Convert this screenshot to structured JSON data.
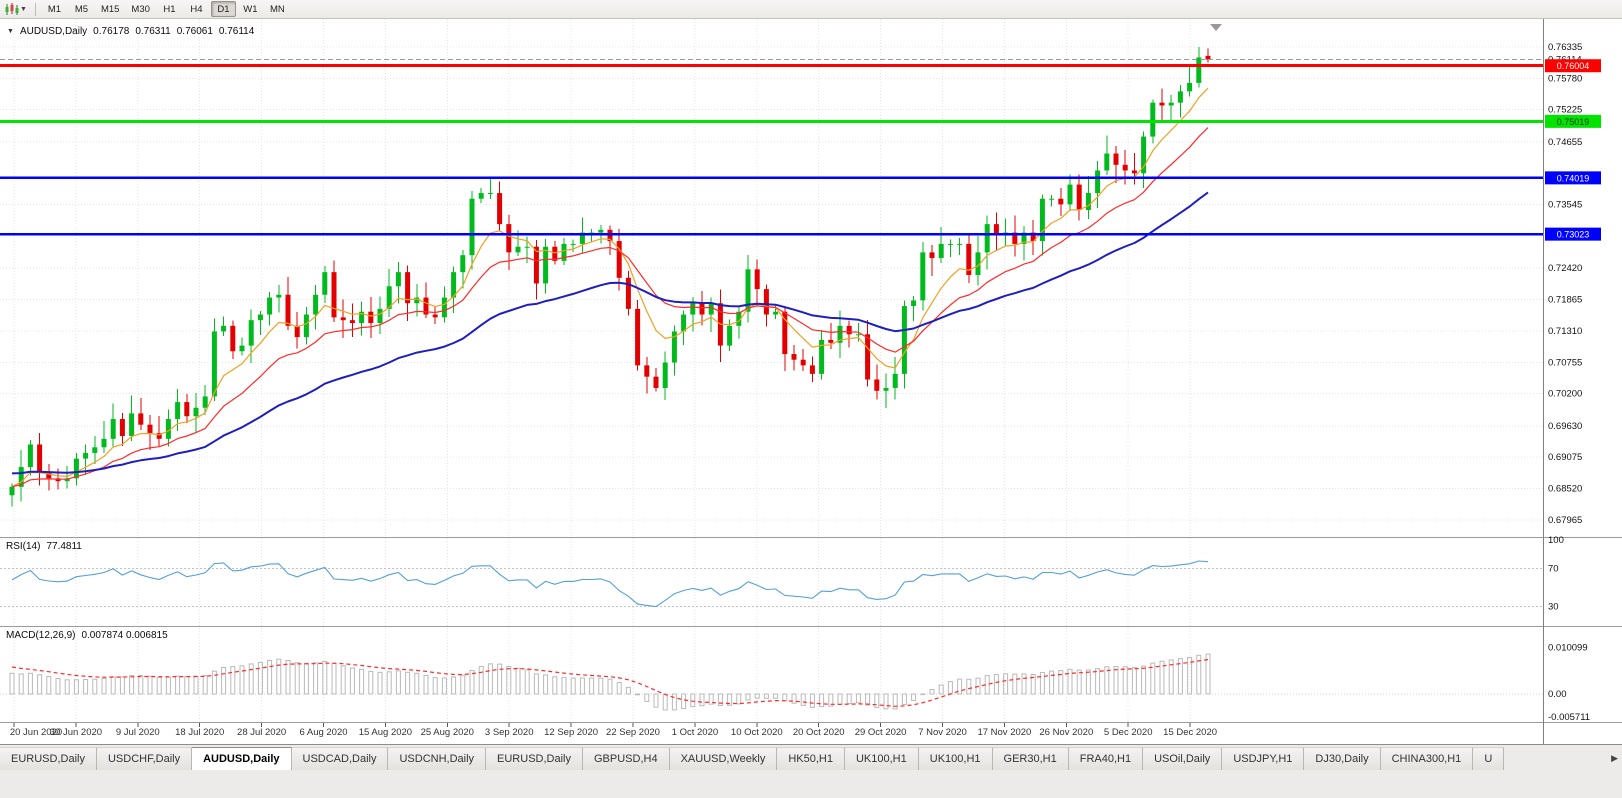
{
  "toolbar": {
    "timeframes": [
      "M1",
      "M5",
      "M15",
      "M30",
      "H1",
      "H4",
      "D1",
      "W1",
      "MN"
    ],
    "active_timeframe": "D1",
    "chart_type_icon": "candlestick-chart-icon",
    "dropdown_caret": "▼"
  },
  "header": {
    "collapse_icon": "▼",
    "symbol": "AUDUSD,Daily",
    "open": "0.76178",
    "high": "0.76311",
    "low": "0.76061",
    "close": "0.76114"
  },
  "rsi": {
    "title": "RSI(14)",
    "value": "77.4811",
    "axis_labels": [
      "100",
      "70",
      "30"
    ],
    "levels": [
      70,
      30
    ],
    "line_color": "#54a0d8"
  },
  "macd": {
    "title": "MACD(12,26,9)",
    "values": "0.007874 0.006815",
    "axis_labels": [
      "0.010099",
      "0.00",
      "-0.005711"
    ],
    "bar_color": "#b9b9b9",
    "signal_color": "#ff2a2a"
  },
  "tab_bar": {
    "active_index": 2,
    "scroll_right_icon": "▶",
    "tabs": [
      "EURUSD,Daily",
      "USDCHF,Daily",
      "AUDUSD,Daily",
      "USDCAD,Daily",
      "USDCNH,Daily",
      "EURUSD,Daily",
      "GBPUSD,H4",
      "XAUUSD,Weekly",
      "HK50,H1",
      "UK100,H1",
      "UK100,H1",
      "GER30,H1",
      "FRA40,H1",
      "USOil,Daily",
      "USDJPY,H1",
      "DJ30,Daily",
      "CHINA300,H1",
      "U"
    ]
  },
  "chart_data": {
    "type": "candlestick",
    "title": "AUDUSD,Daily",
    "x_labels": [
      "20 Jun 2020",
      "30 Jun 2020",
      "9 Jul 2020",
      "18 Jul 2020",
      "28 Jul 2020",
      "6 Aug 2020",
      "15 Aug 2020",
      "25 Aug 2020",
      "3 Sep 2020",
      "12 Sep 2020",
      "22 Sep 2020",
      "1 Oct 2020",
      "10 Oct 2020",
      "20 Oct 2020",
      "29 Oct 2020",
      "7 Nov 2020",
      "17 Nov 2020",
      "26 Nov 2020",
      "5 Dec 2020",
      "15 Dec 2020"
    ],
    "y_axis_ticks": [
      "0.76335",
      "0.75780",
      "0.75225",
      "0.74655",
      "0.73545",
      "0.72420",
      "0.71865",
      "0.71310",
      "0.70755",
      "0.70200",
      "0.69630",
      "0.69075",
      "0.68520",
      "0.67965"
    ],
    "current_price": {
      "value": 0.76114,
      "label": "0.76114"
    },
    "levels": [
      {
        "value": 0.76004,
        "label": "0.76004",
        "color": "#ff0000",
        "width": 3,
        "text": "#ffffff"
      },
      {
        "value": 0.75019,
        "label": "0.75019",
        "color": "#00e400",
        "width": 3,
        "text": "#063306"
      },
      {
        "value": 0.74019,
        "label": "0.74019",
        "color": "#0000ff",
        "width": 2.5,
        "text": "#ffffff"
      },
      {
        "value": 0.73023,
        "label": "0.73023",
        "color": "#0000ff",
        "width": 2.5,
        "text": "#ffffff"
      }
    ],
    "first_open": 0.684,
    "closes": [
      0.6855,
      0.689,
      0.693,
      0.688,
      0.687,
      0.6865,
      0.687,
      0.6905,
      0.6915,
      0.6925,
      0.694,
      0.6975,
      0.6945,
      0.6985,
      0.6965,
      0.695,
      0.694,
      0.6975,
      0.7005,
      0.698,
      0.6995,
      0.7015,
      0.713,
      0.714,
      0.7095,
      0.7105,
      0.715,
      0.716,
      0.719,
      0.7195,
      0.714,
      0.712,
      0.716,
      0.7195,
      0.7235,
      0.7155,
      0.715,
      0.7145,
      0.7165,
      0.7145,
      0.717,
      0.721,
      0.7235,
      0.718,
      0.719,
      0.716,
      0.7155,
      0.719,
      0.7235,
      0.7265,
      0.7365,
      0.7375,
      0.7375,
      0.732,
      0.727,
      0.728,
      0.728,
      0.7215,
      0.728,
      0.7255,
      0.7285,
      0.7285,
      0.7305,
      0.7305,
      0.731,
      0.729,
      0.7225,
      0.717,
      0.707,
      0.705,
      0.703,
      0.7075,
      0.713,
      0.716,
      0.718,
      0.716,
      0.718,
      0.7105,
      0.714,
      0.7165,
      0.724,
      0.7205,
      0.716,
      0.7165,
      0.709,
      0.708,
      0.707,
      0.7055,
      0.7115,
      0.711,
      0.714,
      0.7125,
      0.7125,
      0.7045,
      0.7025,
      0.703,
      0.7055,
      0.7175,
      0.7185,
      0.727,
      0.726,
      0.7285,
      0.7285,
      0.7285,
      0.723,
      0.727,
      0.732,
      0.73,
      0.7305,
      0.7285,
      0.7305,
      0.729,
      0.7365,
      0.7365,
      0.7355,
      0.739,
      0.7345,
      0.7375,
      0.7415,
      0.7445,
      0.7425,
      0.7415,
      0.741,
      0.7475,
      0.7535,
      0.753,
      0.7535,
      0.7555,
      0.757,
      0.7615,
      0.76114
    ],
    "prev_candle_ohlc": [
      0.757,
      0.76335,
      0.7562,
      0.7615
    ],
    "last_candle_ohlc": [
      0.76178,
      0.76311,
      0.76061,
      0.76114
    ],
    "candle_up_color": "#00ba1e",
    "candle_down_color": "#e30000",
    "moving_averages": [
      {
        "period": 7,
        "color": "#f0a022",
        "width": 1.2
      },
      {
        "period": 16,
        "color": "#ff2a2a",
        "width": 1.2
      },
      {
        "period": 40,
        "color": "#1f1fbe",
        "width": 2
      }
    ],
    "indicator_values": {
      "rsi_period": 14,
      "rsi_current": 77.4811,
      "macd_fast": 12,
      "macd_slow": 26,
      "macd_signal": 9,
      "macd_main": 0.007874,
      "macd_signal_value": 0.006815
    }
  }
}
